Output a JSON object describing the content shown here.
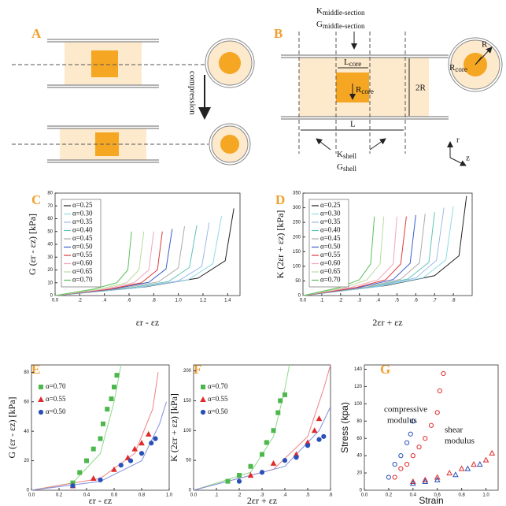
{
  "diagram": {
    "panel_a": "A",
    "panel_b": "B",
    "compression": "compression",
    "k_mid": {
      "symbol": "K",
      "subscript": "middle-section"
    },
    "g_mid": {
      "symbol": "G",
      "subscript": "middle-section"
    },
    "l_core": {
      "symbol": "L",
      "subscript": "core"
    },
    "r_core": {
      "symbol": "R",
      "subscript": "core"
    },
    "two_r": "2R",
    "l": "L",
    "k_shell": {
      "symbol": "K",
      "subscript": "shell"
    },
    "g_shell": {
      "symbol": "G",
      "subscript": "shell"
    },
    "r_big": "R",
    "r_core_circle": {
      "symbol": "R",
      "subscript": "core"
    },
    "axis_r": "r",
    "axis_z": "z"
  },
  "chart_data": [
    {
      "type": "line",
      "panel": "C",
      "xlabel": "εr - εz",
      "ylabel": "G (εr - εz) [kPa]",
      "legend": "upper left",
      "xlim": [
        0,
        1.5
      ],
      "ylim": [
        0,
        80
      ],
      "xticks": [
        {
          "value": 0,
          "label": "0.0"
        },
        {
          "value": 0.2,
          "label": ".2"
        },
        {
          "value": 0.4,
          "label": ".4"
        },
        {
          "value": 0.6,
          "label": ".6"
        },
        {
          "value": 0.8,
          "label": ".8"
        },
        {
          "value": 1.0,
          "label": "1.0"
        },
        1.2,
        1.4
      ],
      "yticks": [
        0,
        10,
        20,
        30,
        40,
        50,
        60,
        70,
        80
      ],
      "series": [
        {
          "name": "α=0.25",
          "color": "#222222",
          "x": [
            0,
            0.73,
            1.16,
            1.38,
            1.45
          ],
          "values": [
            0,
            6.8,
            13.6,
            27.2,
            68
          ]
        },
        {
          "name": "α=0.30",
          "color": "#8fdbe8",
          "x": [
            0,
            0.68,
            1.08,
            1.28,
            1.35
          ],
          "values": [
            0,
            6.2,
            12.4,
            24.8,
            62
          ]
        },
        {
          "name": "α=0.35",
          "color": "#9db8ea",
          "x": [
            0,
            0.63,
            1,
            1.19,
            1.25
          ],
          "values": [
            0,
            5.7,
            11.4,
            22.8,
            57
          ]
        },
        {
          "name": "α=0.40",
          "color": "#5fc4b4",
          "x": [
            0,
            0.58,
            0.92,
            1.09,
            1.15
          ],
          "values": [
            0,
            5.5,
            11,
            22,
            55
          ]
        },
        {
          "name": "α=0.45",
          "color": "#aaaaaa",
          "x": [
            0,
            0.53,
            0.84,
            1,
            1.05
          ],
          "values": [
            0,
            5.4,
            10.8,
            21.6,
            54
          ]
        },
        {
          "name": "α=0.50",
          "color": "#3a5fc8",
          "x": [
            0,
            0.48,
            0.76,
            0.9,
            0.95
          ],
          "values": [
            0,
            5.2,
            10.4,
            20.8,
            52
          ]
        },
        {
          "name": "α=0.55",
          "color": "#e03a3a",
          "x": [
            0,
            0.44,
            0.7,
            0.83,
            0.87
          ],
          "values": [
            0,
            5,
            10,
            20,
            50
          ]
        },
        {
          "name": "α=0.60",
          "color": "#f2a6b8",
          "x": [
            0,
            0.4,
            0.64,
            0.76,
            0.8
          ],
          "values": [
            0,
            5,
            10,
            20,
            50
          ]
        },
        {
          "name": "α=0.65",
          "color": "#b8dca0",
          "x": [
            0,
            0.36,
            0.58,
            0.68,
            0.72
          ],
          "values": [
            0,
            5,
            10,
            20,
            50
          ]
        },
        {
          "name": "α=0.70",
          "color": "#5cc05c",
          "x": [
            0,
            0.31,
            0.5,
            0.59,
            0.62
          ],
          "values": [
            0,
            5,
            10,
            20,
            50
          ]
        }
      ]
    },
    {
      "type": "line",
      "panel": "D",
      "xlabel": "2εr + εz",
      "ylabel": "K (2εr + εz) [kPa]",
      "legend": "upper left",
      "xlim": [
        0,
        0.9
      ],
      "ylim": [
        0,
        350
      ],
      "xticks": [
        {
          "value": 0,
          "label": "0.0"
        },
        {
          "value": 0.1,
          "label": ".1"
        },
        {
          "value": 0.2,
          "label": ".2"
        },
        {
          "value": 0.3,
          "label": ".3"
        },
        {
          "value": 0.4,
          "label": ".4"
        },
        {
          "value": 0.5,
          "label": ".5"
        },
        {
          "value": 0.6,
          "label": ".6"
        },
        {
          "value": 0.7,
          "label": ".7"
        },
        {
          "value": 0.8,
          "label": ".8"
        }
      ],
      "yticks": [
        0,
        50,
        100,
        150,
        200,
        250,
        300,
        350
      ],
      "series": [
        {
          "name": "α=0.25",
          "color": "#222222",
          "x": [
            0,
            0.44,
            0.7,
            0.83,
            0.87
          ],
          "values": [
            0,
            34,
            68,
            136,
            340
          ]
        },
        {
          "name": "α=0.30",
          "color": "#8fdbe8",
          "x": [
            0,
            0.4,
            0.64,
            0.76,
            0.8
          ],
          "values": [
            0,
            30.5,
            61,
            122,
            305
          ]
        },
        {
          "name": "α=0.35",
          "color": "#9db8ea",
          "x": [
            0,
            0.38,
            0.6,
            0.71,
            0.75
          ],
          "values": [
            0,
            30,
            60,
            120,
            300
          ]
        },
        {
          "name": "α=0.40",
          "color": "#5fc4b4",
          "x": [
            0,
            0.35,
            0.56,
            0.67,
            0.7
          ],
          "values": [
            0,
            28.5,
            57,
            114,
            285
          ]
        },
        {
          "name": "α=0.45",
          "color": "#aaaaaa",
          "x": [
            0,
            0.33,
            0.52,
            0.62,
            0.65
          ],
          "values": [
            0,
            28,
            56,
            112,
            280
          ]
        },
        {
          "name": "α=0.50",
          "color": "#3a5fc8",
          "x": [
            0,
            0.3,
            0.48,
            0.57,
            0.6
          ],
          "values": [
            0,
            27.5,
            55,
            110,
            275
          ]
        },
        {
          "name": "α=0.55",
          "color": "#e03a3a",
          "x": [
            0,
            0.28,
            0.44,
            0.52,
            0.55
          ],
          "values": [
            0,
            27,
            54,
            108,
            270
          ]
        },
        {
          "name": "α=0.60",
          "color": "#f2a6b8",
          "x": [
            0,
            0.25,
            0.4,
            0.48,
            0.5
          ],
          "values": [
            0,
            27,
            54,
            108,
            270
          ]
        },
        {
          "name": "α=0.65",
          "color": "#b8dca0",
          "x": [
            0,
            0.22,
            0.34,
            0.41,
            0.43
          ],
          "values": [
            0,
            27,
            54,
            108,
            270
          ]
        },
        {
          "name": "α=0.70",
          "color": "#5cc05c",
          "x": [
            0,
            0.19,
            0.3,
            0.36,
            0.38
          ],
          "values": [
            0,
            27,
            54,
            108,
            270
          ]
        }
      ]
    },
    {
      "type": "scatter",
      "panel": "E",
      "xlabel": "εr - εz",
      "ylabel": "G (εr - εz) [kPa]",
      "legend": "upper left",
      "xlim": [
        0,
        1.0
      ],
      "ylim": [
        0,
        85
      ],
      "xticks": [
        {
          "value": 0,
          "label": "0.0"
        },
        {
          "value": 0.2,
          "label": "0.2"
        },
        {
          "value": 0.4,
          "label": "0.4"
        },
        {
          "value": 0.6,
          "label": "0.6"
        },
        {
          "value": 0.8,
          "label": "0.8"
        },
        {
          "value": 1.0,
          "label": "1.0"
        }
      ],
      "yticks": [
        0,
        20,
        40,
        60,
        80
      ],
      "series": [
        {
          "name": "α=0.70",
          "color": "#4cb84c",
          "marker": "square",
          "filled": true,
          "x": [
            0.3,
            0.35,
            0.4,
            0.45,
            0.5,
            0.52,
            0.55,
            0.58,
            0.6,
            0.62
          ],
          "values": [
            5,
            12,
            20,
            28,
            35,
            45,
            55,
            62,
            70,
            78
          ]
        },
        {
          "name": "α=0.55",
          "color": "#e02a2a",
          "marker": "triangle",
          "filled": true,
          "x": [
            0.3,
            0.45,
            0.6,
            0.7,
            0.75,
            0.8,
            0.85
          ],
          "values": [
            3,
            8,
            14,
            22,
            28,
            32,
            38
          ]
        },
        {
          "name": "α=0.50",
          "color": "#2a50b8",
          "marker": "circle",
          "filled": true,
          "x": [
            0.3,
            0.5,
            0.65,
            0.72,
            0.8,
            0.87,
            0.9
          ],
          "values": [
            3,
            7,
            17,
            20,
            25,
            32,
            35
          ]
        }
      ],
      "fits": [
        {
          "color": "#8fd88f",
          "x": [
            0,
            0.3,
            0.5,
            0.6,
            0.65
          ],
          "values": [
            0,
            5,
            25,
            60,
            85
          ]
        },
        {
          "color": "#f08080",
          "x": [
            0,
            0.5,
            0.75,
            0.88,
            0.92
          ],
          "values": [
            0,
            8,
            25,
            55,
            80
          ]
        },
        {
          "color": "#8090e0",
          "x": [
            0,
            0.5,
            0.8,
            0.93,
            0.98
          ],
          "values": [
            0,
            6,
            20,
            45,
            60
          ]
        }
      ]
    },
    {
      "type": "scatter",
      "panel": "F",
      "xlabel": "2εr + εz",
      "ylabel": "K (2εr + εz) [kPa]",
      "legend": "upper left",
      "xlim": [
        0,
        0.6
      ],
      "ylim": [
        0,
        210
      ],
      "xticks": [
        {
          "value": 0,
          "label": "0.0"
        },
        {
          "value": 0.1,
          "label": ".1"
        },
        {
          "value": 0.2,
          "label": ".2"
        },
        {
          "value": 0.3,
          "label": ".3"
        },
        {
          "value": 0.4,
          "label": ".4"
        },
        {
          "value": 0.5,
          "label": ".5"
        },
        {
          "value": 0.6,
          "label": ".6"
        }
      ],
      "yticks": [
        0,
        50,
        100,
        150,
        200
      ],
      "series": [
        {
          "name": "α=0.70",
          "color": "#4cb84c",
          "marker": "square",
          "filled": true,
          "x": [
            0.15,
            0.2,
            0.25,
            0.3,
            0.32,
            0.35,
            0.37,
            0.38,
            0.4
          ],
          "values": [
            15,
            25,
            40,
            60,
            80,
            100,
            130,
            150,
            160
          ]
        },
        {
          "name": "α=0.55",
          "color": "#e02a2a",
          "marker": "triangle",
          "filled": true,
          "x": [
            0.25,
            0.35,
            0.45,
            0.5,
            0.53,
            0.55
          ],
          "values": [
            25,
            45,
            60,
            80,
            100,
            120
          ]
        },
        {
          "name": "α=0.50",
          "color": "#2a50b8",
          "marker": "circle",
          "filled": true,
          "x": [
            0.2,
            0.3,
            0.4,
            0.45,
            0.5,
            0.55,
            0.57
          ],
          "values": [
            15,
            30,
            50,
            55,
            75,
            85,
            90
          ]
        }
      ],
      "fits": [
        {
          "color": "#8fd88f",
          "x": [
            0,
            0.25,
            0.35,
            0.4,
            0.42
          ],
          "values": [
            0,
            30,
            90,
            170,
            210
          ]
        },
        {
          "color": "#f08080",
          "x": [
            0,
            0.35,
            0.5,
            0.57,
            0.6
          ],
          "values": [
            0,
            35,
            90,
            170,
            210
          ]
        },
        {
          "color": "#8090e0",
          "x": [
            0,
            0.4,
            0.55,
            0.6
          ],
          "values": [
            0,
            40,
            100,
            140
          ]
        }
      ]
    },
    {
      "type": "scatter",
      "panel": "G",
      "xlabel": "Strain",
      "ylabel": "Stress (kpa)",
      "xlim": [
        0,
        1.1
      ],
      "ylim": [
        0,
        145
      ],
      "xticks": [
        {
          "value": 0,
          "label": "0.0"
        },
        {
          "value": 0.2,
          "label": "0.2"
        },
        {
          "value": 0.4,
          "label": "0.4"
        },
        {
          "value": 0.6,
          "label": "0.6"
        },
        {
          "value": 0.8,
          "label": "0.8"
        },
        {
          "value": 1.0,
          "label": "1.0"
        }
      ],
      "yticks": [
        0,
        20,
        40,
        60,
        80,
        100,
        120,
        140
      ],
      "annotations": [
        "compressive",
        "modulus",
        "shear",
        "modulus"
      ],
      "series": [
        {
          "color": "#e02a2a",
          "marker": "circle",
          "filled": false,
          "x": [
            0.25,
            0.3,
            0.35,
            0.4,
            0.45,
            0.5,
            0.55,
            0.6,
            0.62,
            0.65
          ],
          "values": [
            15,
            25,
            30,
            40,
            50,
            60,
            75,
            90,
            115,
            135
          ]
        },
        {
          "color": "#2a50b8",
          "marker": "circle",
          "filled": false,
          "x": [
            0.2,
            0.25,
            0.3,
            0.35,
            0.38,
            0.4
          ],
          "values": [
            15,
            30,
            40,
            55,
            65,
            80
          ]
        },
        {
          "color": "#e02a2a",
          "marker": "triangle",
          "filled": false,
          "x": [
            0.4,
            0.5,
            0.6,
            0.7,
            0.8,
            0.9,
            1.0,
            1.05
          ],
          "values": [
            10,
            12,
            15,
            20,
            25,
            30,
            35,
            43
          ]
        },
        {
          "color": "#2a50b8",
          "marker": "triangle",
          "filled": false,
          "x": [
            0.4,
            0.5,
            0.6,
            0.75,
            0.85,
            0.95
          ],
          "values": [
            8,
            10,
            12,
            18,
            25,
            30
          ]
        }
      ]
    }
  ]
}
